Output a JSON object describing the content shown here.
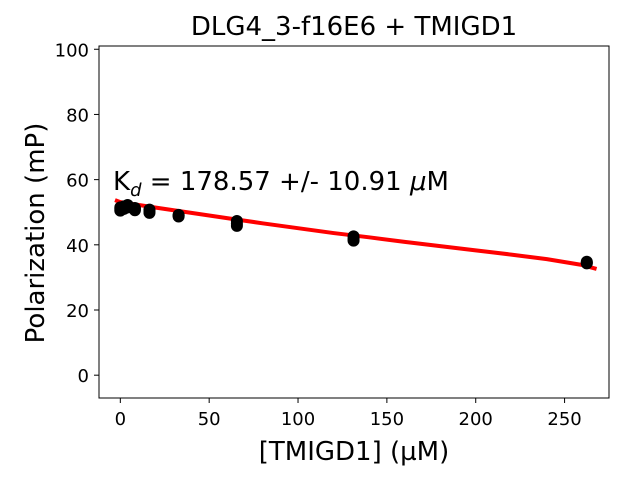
{
  "chart_data": {
    "type": "scatter",
    "title": "DLG4_3-f16E6 + TMIGD1",
    "xlabel": "[TMIGD1] (µM)",
    "ylabel": "Polarization (mP)",
    "annotation": {
      "prefix": "K",
      "subscript": "d",
      "value_text": " = 178.57 +/- 10.91 ",
      "mu": "μ",
      "unit": "M"
    },
    "xlim": [
      -12,
      275
    ],
    "ylim": [
      -7,
      101
    ],
    "xticks": [
      0,
      50,
      100,
      150,
      200,
      250
    ],
    "yticks": [
      0,
      20,
      40,
      60,
      80,
      100
    ],
    "points": {
      "x": [
        0,
        0,
        0,
        2.05,
        2.05,
        2.05,
        4.1,
        4.1,
        4.1,
        8.2,
        8.2,
        8.2,
        16.4,
        16.4,
        16.4,
        32.8,
        32.8,
        32.8,
        65.6,
        65.6,
        65.6,
        131.25,
        131.25,
        131.25,
        262.5,
        262.5,
        262.5
      ],
      "y": [
        50.5,
        51.5,
        51.0,
        51.3,
        51.8,
        51.0,
        52.2,
        51.5,
        52.0,
        50.6,
        51.3,
        51.0,
        49.8,
        50.8,
        50.3,
        49.0,
        48.7,
        49.2,
        45.8,
        47.3,
        46.5,
        41.3,
        42.6,
        41.8,
        34.5,
        34.3,
        34.8
      ],
      "color": "#000000"
    },
    "fit": {
      "color": "#ff0000",
      "x": [
        -3,
        0,
        20,
        40,
        60,
        80,
        100,
        120,
        140,
        160,
        180,
        200,
        220,
        240,
        260,
        268
      ],
      "y": [
        53.7,
        53.1,
        51.4,
        49.8,
        48.2,
        46.6,
        45.1,
        43.6,
        42.3,
        40.9,
        39.6,
        38.3,
        37.0,
        35.6,
        33.8,
        32.6
      ]
    }
  }
}
